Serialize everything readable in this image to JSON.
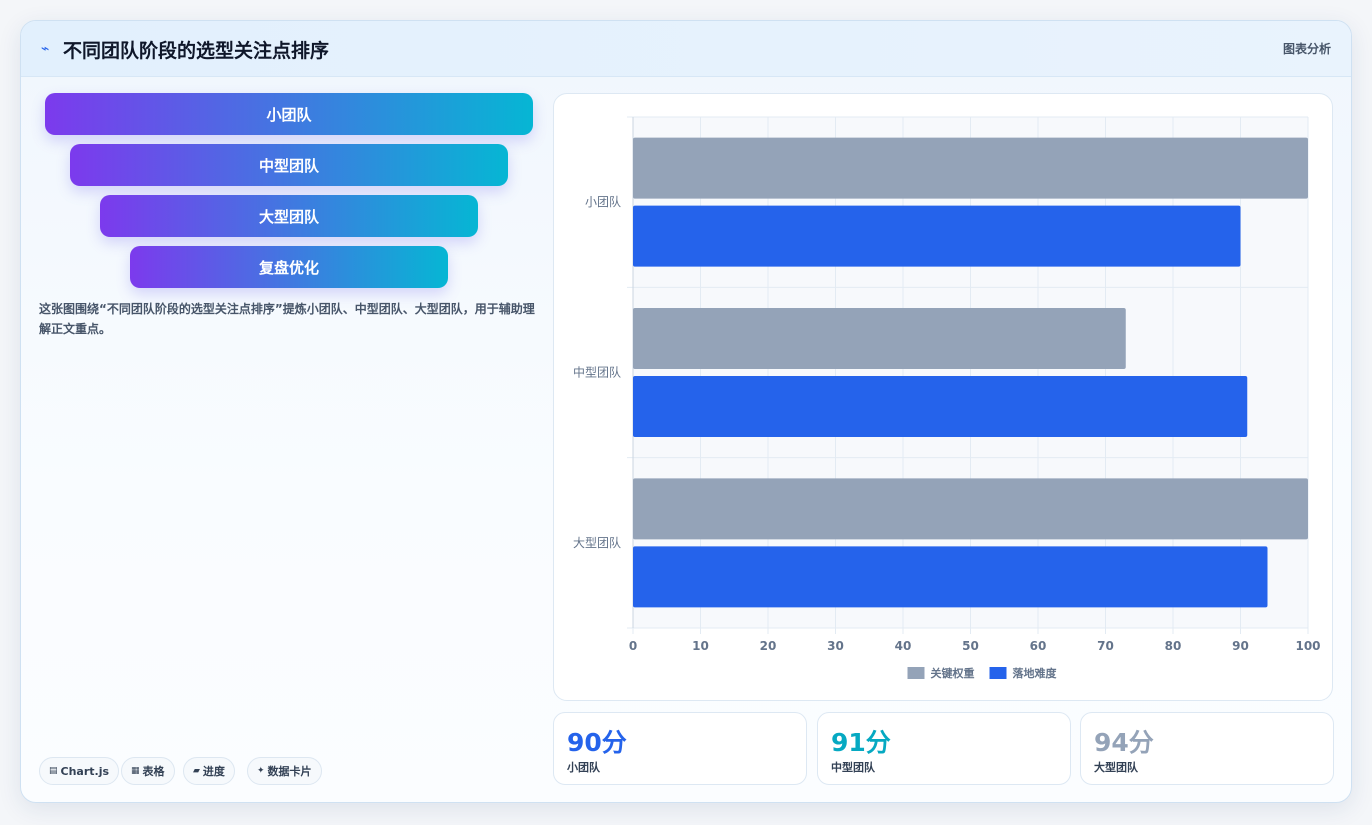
{
  "header": {
    "icon": "line-chart-icon",
    "title": "不同团队阶段的选型关注点排序",
    "tag": "图表分析"
  },
  "stages": [
    {
      "label": "小团队"
    },
    {
      "label": "中型团队"
    },
    {
      "label": "大型团队"
    },
    {
      "label": "复盘优化"
    }
  ],
  "description": "这张图围绕“不同团队阶段的选型关注点排序”提炼小团队、中型团队、大型团队，用于辅助理解正文重点。",
  "chips": [
    {
      "icon": "chart-icon",
      "glyph": "▤",
      "label": "Chart.js"
    },
    {
      "icon": "table-icon",
      "glyph": "▦",
      "label": "表格"
    },
    {
      "icon": "progress-icon",
      "glyph": "▰",
      "label": "进度"
    },
    {
      "icon": "sparkle-icon",
      "glyph": "✦",
      "label": "数据卡片"
    }
  ],
  "chart_data": {
    "type": "bar",
    "orientation": "horizontal",
    "categories": [
      "小团队",
      "中型团队",
      "大型团队"
    ],
    "series": [
      {
        "name": "关键权重",
        "color": "#94a3b8",
        "values": [
          100,
          73,
          100
        ]
      },
      {
        "name": "落地难度",
        "color": "#2563eb",
        "values": [
          90,
          91,
          94
        ]
      }
    ],
    "xlim": [
      0,
      100
    ],
    "xticks": [
      0,
      10,
      20,
      30,
      40,
      50,
      60,
      70,
      80,
      90,
      100
    ],
    "grid": true,
    "legend": "bottom"
  },
  "stats": [
    {
      "value": "90分",
      "label": "小团队",
      "color": "#2563eb"
    },
    {
      "value": "91分",
      "label": "中型团队",
      "color": "#06a9c2"
    },
    {
      "value": "94分",
      "label": "大型团队",
      "color": "#94a3b8"
    }
  ],
  "colors": {
    "accent": "#2563eb",
    "gradient_start": "#7c3aed",
    "gradient_end": "#06b6d4"
  }
}
